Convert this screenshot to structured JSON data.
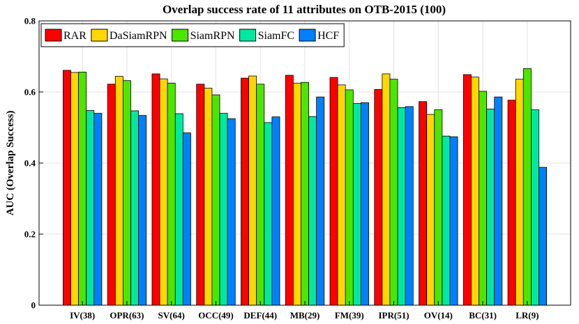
{
  "chart_data": {
    "type": "bar",
    "title": "Overlap success rate of 11 attributes on OTB-2015 (100)",
    "xlabel": "",
    "ylabel": "AUC (Overlap Success)",
    "ylim": [
      0,
      0.8
    ],
    "yticks": [
      "0",
      "0.2",
      "0.4",
      "0.6",
      "0.8"
    ],
    "grid": true,
    "legend_position": "top-left",
    "categories": [
      "IV(38)",
      "OPR(63)",
      "SV(64)",
      "OCC(49)",
      "DEF(44)",
      "MB(29)",
      "FM(39)",
      "IPR(51)",
      "OV(14)",
      "BC(31)",
      "LR(9)"
    ],
    "series": [
      {
        "name": "RAR",
        "color": "#ff0000",
        "values": [
          0.661,
          0.622,
          0.651,
          0.622,
          0.639,
          0.647,
          0.641,
          0.607,
          0.573,
          0.649,
          0.577
        ]
      },
      {
        "name": "DaSiamRPN",
        "color": "#ffd700",
        "values": [
          0.655,
          0.644,
          0.637,
          0.611,
          0.645,
          0.625,
          0.62,
          0.651,
          0.537,
          0.642,
          0.636
        ]
      },
      {
        "name": "SiamRPN",
        "color": "#4ce600",
        "values": [
          0.656,
          0.632,
          0.625,
          0.592,
          0.622,
          0.627,
          0.606,
          0.636,
          0.55,
          0.602,
          0.666
        ]
      },
      {
        "name": "SiamFC",
        "color": "#00e8a0",
        "values": [
          0.548,
          0.547,
          0.539,
          0.54,
          0.514,
          0.531,
          0.568,
          0.556,
          0.476,
          0.552,
          0.55
        ]
      },
      {
        "name": "HCF",
        "color": "#0080ff",
        "values": [
          0.54,
          0.534,
          0.485,
          0.525,
          0.53,
          0.586,
          0.57,
          0.559,
          0.474,
          0.586,
          0.388
        ]
      }
    ]
  }
}
